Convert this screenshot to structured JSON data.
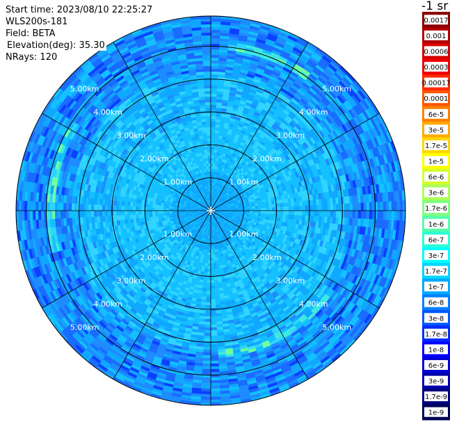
{
  "header": {
    "start_time": "Start time: 2023/08/10 22:25:27",
    "instrument": "WLS200s-181",
    "field": "Field: BETA",
    "elevation": "Elevation(deg): 35.30",
    "nrays": "NRays: 120"
  },
  "colorbar": {
    "unit_label": "-1 sr",
    "labels": [
      "0.0017",
      "0.001",
      "0.0006",
      "0.0003",
      "0.00017",
      "0.0001",
      "6e-5",
      "3e-5",
      "1.7e-5",
      "1e-5",
      "6e-6",
      "3e-6",
      "1.7e-6",
      "1e-6",
      "6e-7",
      "3e-7",
      "1.7e-7",
      "1e-7",
      "6e-8",
      "3e-8",
      "1.7e-8",
      "1e-8",
      "6e-9",
      "3e-9",
      "1.7e-9",
      "1e-9"
    ],
    "colors": [
      "#8b0000",
      "#b00000",
      "#d40000",
      "#f00000",
      "#ff2a00",
      "#ff5500",
      "#ff8000",
      "#ffaa00",
      "#ffd500",
      "#ffff00",
      "#d5ff2b",
      "#aaff55",
      "#80ff80",
      "#55ffaa",
      "#2bffd5",
      "#00ffff",
      "#00d5ff",
      "#00aaff",
      "#0080ff",
      "#0055ff",
      "#002bff",
      "#0000ff",
      "#0000d5",
      "#0000aa",
      "#000080",
      "#000055"
    ]
  },
  "chart_data": {
    "type": "polar-heatmap",
    "field": "BETA",
    "nrays": 120,
    "elevation_deg": 35.3,
    "range_rings_km": [
      "1.00km",
      "2.00km",
      "3.00km",
      "4.00km",
      "5.00km"
    ],
    "spokes_deg": [
      0,
      30,
      60,
      90,
      120,
      150,
      180,
      210,
      240,
      270,
      300,
      330
    ],
    "features": [
      {
        "desc": "enhanced arc",
        "range_km": 5.0,
        "azimuth_from": 5,
        "azimuth_to": 35,
        "level": "1e-6"
      },
      {
        "desc": "enhanced arc",
        "range_km": 4.8,
        "azimuth_from": 255,
        "azimuth_to": 300,
        "level": "3e-6"
      },
      {
        "desc": "enhanced arc",
        "range_km": 4.3,
        "azimuth_from": 125,
        "azimuth_to": 175,
        "level": "1e-6"
      }
    ]
  }
}
